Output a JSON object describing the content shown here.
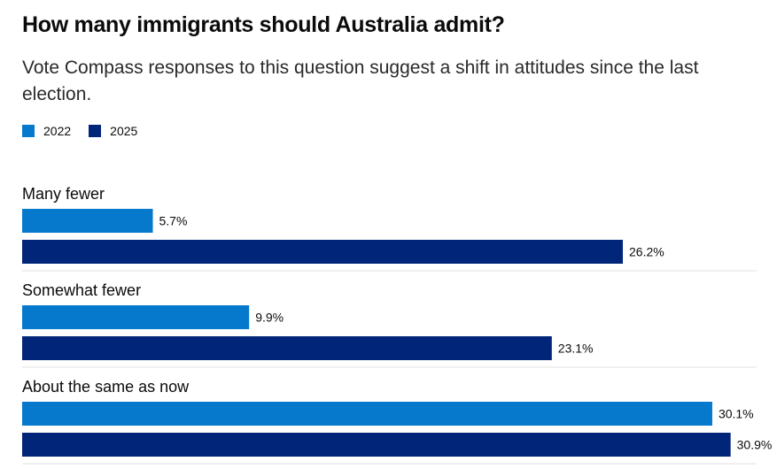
{
  "title": "How many immigrants should Australia admit?",
  "subtitle": "Vote Compass responses to this question suggest a shift in attitudes since the last election.",
  "colors": {
    "series_2022": "#0779cc",
    "series_2025": "#002579",
    "divider": "#e2e2e2"
  },
  "chart_data": {
    "type": "bar",
    "orientation": "horizontal",
    "title": "How many immigrants should Australia admit?",
    "categories": [
      "Many fewer",
      "Somewhat fewer",
      "About the same as now"
    ],
    "series": [
      {
        "name": "2022",
        "values": [
          5.7,
          9.9,
          30.1
        ],
        "labels": [
          "5.7%",
          "9.9%",
          "30.1%"
        ]
      },
      {
        "name": "2025",
        "values": [
          26.2,
          23.1,
          30.9
        ],
        "labels": [
          "26.2%",
          "23.1%",
          "30.9%"
        ]
      }
    ],
    "legend": [
      "2022",
      "2025"
    ],
    "legend_position": "top-left",
    "xlim": [
      0,
      33
    ],
    "xlabel": "",
    "ylabel": "",
    "grid": false
  }
}
